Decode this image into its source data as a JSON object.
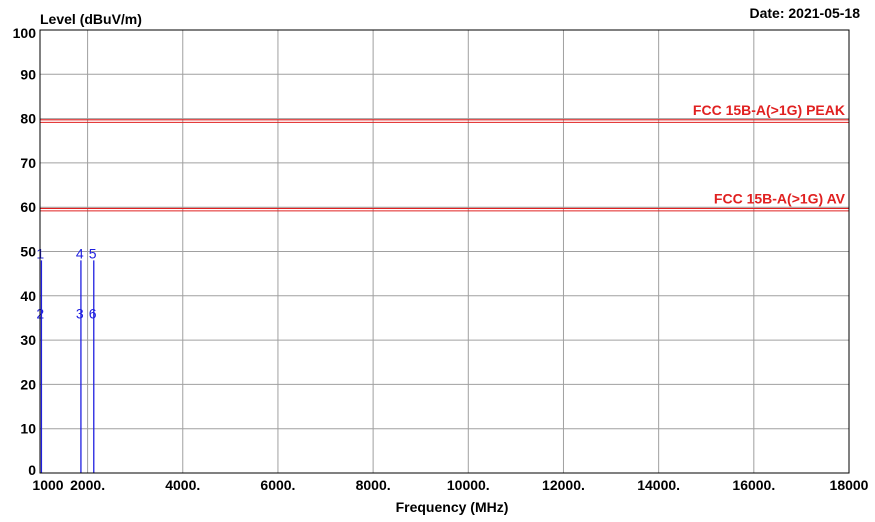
{
  "chart_data": {
    "type": "line",
    "ylabel": "Level (dBuV/m)",
    "xlabel": "Frequency (MHz)",
    "date": "Date: 2021-05-18",
    "xlim": [
      1000,
      18000
    ],
    "ylim": [
      0,
      100
    ],
    "grid": true,
    "x_ticks": [
      {
        "value": 1000,
        "label": "1000"
      },
      {
        "value": 2000,
        "label": "2000."
      },
      {
        "value": 4000,
        "label": "4000."
      },
      {
        "value": 6000,
        "label": "6000."
      },
      {
        "value": 8000,
        "label": "8000."
      },
      {
        "value": 10000,
        "label": "10000."
      },
      {
        "value": 12000,
        "label": "12000."
      },
      {
        "value": 14000,
        "label": "14000."
      },
      {
        "value": 16000,
        "label": "16000."
      },
      {
        "value": 18000,
        "label": "18000"
      }
    ],
    "y_ticks": [
      {
        "value": 0,
        "label": "0"
      },
      {
        "value": 10,
        "label": "10"
      },
      {
        "value": 20,
        "label": "20"
      },
      {
        "value": 30,
        "label": "30"
      },
      {
        "value": 40,
        "label": "40"
      },
      {
        "value": 50,
        "label": "50"
      },
      {
        "value": 60,
        "label": "60"
      },
      {
        "value": 70,
        "label": "70"
      },
      {
        "value": 80,
        "label": "80"
      },
      {
        "value": 90,
        "label": "90"
      },
      {
        "value": 100,
        "label": "100"
      }
    ],
    "limit_lines": [
      {
        "name": "FCC 15B-A(>1G) PEAK",
        "value": 79.5,
        "color": "#e02020"
      },
      {
        "name": "FCC 15B-A(>1G) AV",
        "value": 59.5,
        "color": "#e02020"
      }
    ],
    "markers": [
      {
        "freq": 1030,
        "peak": 48,
        "avg": 36,
        "peak_label": "1",
        "avg_label": "2",
        "color": "#2020e0"
      },
      {
        "freq": 1860,
        "peak": 48,
        "avg": 36,
        "peak_label": "4",
        "avg_label": "3",
        "color": "#2020e0"
      },
      {
        "freq": 2130,
        "peak": 48,
        "avg": 36,
        "peak_label": "5",
        "avg_label": "6",
        "color": "#2020e0"
      }
    ]
  }
}
